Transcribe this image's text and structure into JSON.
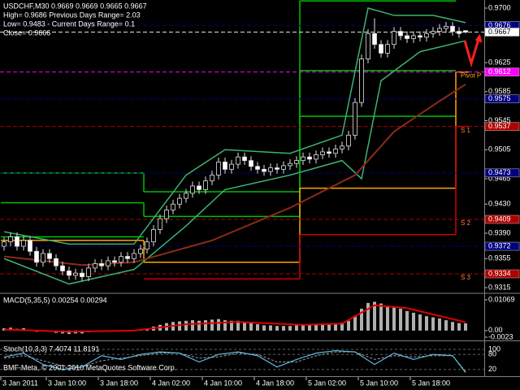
{
  "chart_data": {
    "type": "candlestick",
    "header": [
      "USDCHF,M30  0.9669 0.9669 0.9665 0.9667",
      "High= 0.9686   Previous Days Range= 2.03",
      "Low= 0.9483 - Current Days Range= 0.1",
      "Close= 0.9666"
    ],
    "candles": [
      [
        0.9372,
        0.9384,
        0.9366,
        0.9378
      ],
      [
        0.9378,
        0.9391,
        0.9372,
        0.9385
      ],
      [
        0.9385,
        0.9391,
        0.9366,
        0.9372
      ],
      [
        0.9372,
        0.9386,
        0.9366,
        0.938
      ],
      [
        0.938,
        0.9386,
        0.9359,
        0.9365
      ],
      [
        0.9365,
        0.9371,
        0.9344,
        0.935
      ],
      [
        0.935,
        0.9368,
        0.9344,
        0.9362
      ],
      [
        0.9362,
        0.9368,
        0.9349,
        0.9355
      ],
      [
        0.9355,
        0.9361,
        0.9339,
        0.9345
      ],
      [
        0.9345,
        0.9351,
        0.9332,
        0.9338
      ],
      [
        0.9338,
        0.9344,
        0.9326,
        0.9332
      ],
      [
        0.9332,
        0.9341,
        0.9326,
        0.9335
      ],
      [
        0.9335,
        0.9341,
        0.9324,
        0.933
      ],
      [
        0.933,
        0.9348,
        0.9324,
        0.9342
      ],
      [
        0.9342,
        0.9354,
        0.9336,
        0.9348
      ],
      [
        0.9348,
        0.9354,
        0.9339,
        0.9345
      ],
      [
        0.9345,
        0.9358,
        0.9339,
        0.9352
      ],
      [
        0.9352,
        0.9358,
        0.9344,
        0.935
      ],
      [
        0.935,
        0.9364,
        0.9344,
        0.9358
      ],
      [
        0.9358,
        0.9364,
        0.9349,
        0.9355
      ],
      [
        0.9355,
        0.9368,
        0.9349,
        0.9362
      ],
      [
        0.9362,
        0.9374,
        0.9356,
        0.9368
      ],
      [
        0.9368,
        0.9384,
        0.9362,
        0.9378
      ],
      [
        0.9378,
        0.9401,
        0.9372,
        0.9395
      ],
      [
        0.9395,
        0.9416,
        0.9389,
        0.941
      ],
      [
        0.941,
        0.9428,
        0.9404,
        0.9422
      ],
      [
        0.9422,
        0.9436,
        0.9416,
        0.943
      ],
      [
        0.943,
        0.9444,
        0.9424,
        0.9438
      ],
      [
        0.9438,
        0.9451,
        0.9432,
        0.9445
      ],
      [
        0.9445,
        0.9461,
        0.9439,
        0.9455
      ],
      [
        0.9455,
        0.9461,
        0.9444,
        0.945
      ],
      [
        0.945,
        0.9468,
        0.9444,
        0.9462
      ],
      [
        0.9462,
        0.9476,
        0.9456,
        0.947
      ],
      [
        0.947,
        0.9494,
        0.9464,
        0.9488
      ],
      [
        0.9488,
        0.9494,
        0.9472,
        0.9478
      ],
      [
        0.9478,
        0.9491,
        0.9472,
        0.9485
      ],
      [
        0.9485,
        0.9501,
        0.9479,
        0.9495
      ],
      [
        0.9495,
        0.9501,
        0.9484,
        0.949
      ],
      [
        0.949,
        0.9496,
        0.9476,
        0.9482
      ],
      [
        0.9482,
        0.9488,
        0.9472,
        0.9478
      ],
      [
        0.9478,
        0.9484,
        0.9469,
        0.9475
      ],
      [
        0.9475,
        0.9486,
        0.9469,
        0.948
      ],
      [
        0.948,
        0.9486,
        0.9472,
        0.9478
      ],
      [
        0.9478,
        0.9489,
        0.9472,
        0.9483
      ],
      [
        0.9483,
        0.9492,
        0.9477,
        0.9486
      ],
      [
        0.9486,
        0.9496,
        0.948,
        0.949
      ],
      [
        0.949,
        0.9501,
        0.9484,
        0.9495
      ],
      [
        0.9495,
        0.9501,
        0.9486,
        0.9492
      ],
      [
        0.9492,
        0.9504,
        0.9486,
        0.9498
      ],
      [
        0.9498,
        0.9508,
        0.9492,
        0.9502
      ],
      [
        0.9502,
        0.9508,
        0.9494,
        0.95
      ],
      [
        0.95,
        0.9512,
        0.9494,
        0.9506
      ],
      [
        0.9506,
        0.9516,
        0.95,
        0.951
      ],
      [
        0.951,
        0.9531,
        0.9504,
        0.9525
      ],
      [
        0.9525,
        0.9576,
        0.9519,
        0.957
      ],
      [
        0.957,
        0.9636,
        0.9564,
        0.963
      ],
      [
        0.963,
        0.9671,
        0.9624,
        0.9665
      ],
      [
        0.9665,
        0.9686,
        0.9644,
        0.965
      ],
      [
        0.965,
        0.9656,
        0.9632,
        0.9638
      ],
      [
        0.9638,
        0.9656,
        0.9632,
        0.965
      ],
      [
        0.965,
        0.9674,
        0.9644,
        0.9668
      ],
      [
        0.9668,
        0.9674,
        0.9656,
        0.9662
      ],
      [
        0.9662,
        0.9668,
        0.9652,
        0.9658
      ],
      [
        0.9658,
        0.9668,
        0.9652,
        0.9662
      ],
      [
        0.9662,
        0.9668,
        0.9654,
        0.966
      ],
      [
        0.966,
        0.9671,
        0.9654,
        0.9665
      ],
      [
        0.9665,
        0.9674,
        0.9659,
        0.9668
      ],
      [
        0.9668,
        0.9678,
        0.9662,
        0.9672
      ],
      [
        0.9672,
        0.9681,
        0.9666,
        0.9675
      ],
      [
        0.9675,
        0.9681,
        0.9662,
        0.9668
      ],
      [
        0.9668,
        0.9674,
        0.9659,
        0.9665
      ],
      [
        0.9669,
        0.9669,
        0.9665,
        0.9667
      ]
    ],
    "ylim": [
      0.9315,
      0.97
    ],
    "yticks": [
      {
        "value": 0.97,
        "label": "0.9700"
      },
      0.9625,
      0.9585,
      0.9545,
      0.9505,
      0.9465,
      {
        "value": 0.943,
        "label": "0.9430"
      },
      {
        "value": 0.939,
        "label": "0.9390"
      },
      0.9355,
      0.9315
    ],
    "xticks": [
      {
        "value": 0,
        "label": "3 Jan 2011"
      },
      {
        "value": 7,
        "label": "3 Jan 10:00"
      },
      {
        "value": 15,
        "label": "3 Jan 18:00"
      },
      {
        "value": 23,
        "label": "4 Jan 02:00"
      },
      {
        "value": 31,
        "label": "4 Jan 10:00"
      },
      {
        "value": 39,
        "label": "4 Jan 18:00"
      },
      {
        "value": 47,
        "label": "5 Jan 02:00"
      },
      {
        "value": 55,
        "label": "5 Jan 10:00"
      },
      {
        "value": 63,
        "label": "5 Jan 18:00"
      }
    ],
    "ma": {
      "color": "#8b2a1a",
      "x": [
        0,
        12,
        20,
        32,
        44,
        54,
        60,
        67,
        71
      ],
      "values": [
        0.9358,
        0.9346,
        0.935,
        0.938,
        0.9425,
        0.947,
        0.953,
        0.9572,
        0.9595
      ]
    },
    "bands": [
      {
        "color": "#3cb371",
        "x": [
          0,
          10,
          20,
          28,
          34,
          44,
          52,
          56,
          60,
          66,
          71
        ],
        "values": [
          0.9392,
          0.9375,
          0.9375,
          0.947,
          0.9505,
          0.95,
          0.9525,
          0.97,
          0.969,
          0.969,
          0.968
        ]
      },
      {
        "color": "#3cb371",
        "x": [
          0,
          10,
          20,
          28,
          34,
          44,
          52,
          55,
          58,
          64,
          71
        ],
        "values": [
          0.9355,
          0.932,
          0.934,
          0.94,
          0.945,
          0.947,
          0.949,
          0.9465,
          0.96,
          0.964,
          0.9655
        ]
      }
    ],
    "day_breaks": [
      0,
      22,
      46,
      70,
      72
    ],
    "levels": [
      {
        "color": "#00c000",
        "values": [
          0.9473,
          0.9447,
          0.971,
          null
        ]
      },
      {
        "color": "#00c000",
        "values": [
          0.9432,
          0.9413,
          0.9614,
          null
        ]
      },
      {
        "color": "#00c000",
        "values": [
          0.9385,
          null,
          0.9551,
          null
        ]
      },
      {
        "color": "#ffa500",
        "values": [
          0.938,
          0.935,
          0.9452,
          0.9612
        ]
      },
      {
        "color": "#d00000",
        "values": [
          null,
          0.9327,
          0.9388,
          0.9537
        ]
      }
    ],
    "hlines": [
      {
        "value": 0.9676,
        "color": "#000080"
      },
      {
        "value": 0.9667,
        "color": "#e0e0e0"
      },
      {
        "value": 0.9612,
        "color": "#ff00ff",
        "text": "Pivot P"
      },
      {
        "value": 0.9575,
        "color": "#000080"
      },
      {
        "value": 0.9537,
        "color": "#b00000",
        "text": "S 1"
      },
      {
        "value": 0.9473,
        "color": "#000080"
      },
      {
        "value": 0.9409,
        "color": "#b00000",
        "text": "S 2"
      },
      {
        "value": 0.9372,
        "color": "#000080"
      },
      {
        "value": 0.9334,
        "color": "#b00000",
        "text": "S 3"
      }
    ],
    "macd": {
      "title": "MACD(5,35,5) 0.00254 0.00294",
      "hist_color": "#b0b0b0",
      "hist": [
        0.0008,
        0.001,
        0.0006,
        0.0008,
        0.0002,
        -0.0004,
        -0.0002,
        -0.0004,
        -0.0008,
        -0.001,
        -0.0012,
        -0.001,
        -0.001,
        -0.0006,
        -0.0004,
        -0.0004,
        -0.0002,
        -0.0002,
        0,
        0,
        0.0002,
        0.0004,
        0.0008,
        0.0014,
        0.002,
        0.0026,
        0.003,
        0.0032,
        0.0034,
        0.0036,
        0.0034,
        0.0036,
        0.0038,
        0.004,
        0.0036,
        0.0034,
        0.0034,
        0.003,
        0.0026,
        0.0022,
        0.0018,
        0.0018,
        0.0016,
        0.0016,
        0.0016,
        0.0018,
        0.002,
        0.002,
        0.0022,
        0.0024,
        0.0024,
        0.0026,
        0.0028,
        0.0034,
        0.0052,
        0.0076,
        0.0096,
        0.01,
        0.0094,
        0.0086,
        0.0084,
        0.0076,
        0.0068,
        0.0062,
        0.0056,
        0.005,
        0.0046,
        0.0042,
        0.0036,
        0.003,
        0.0026,
        0.0025
      ],
      "signal": {
        "color": "#e00000",
        "x": [
          0,
          10,
          20,
          28,
          36,
          46,
          52,
          57,
          62,
          71
        ],
        "values": [
          0.0004,
          -0.0004,
          0,
          0.0022,
          0.003,
          0.002,
          0.0024,
          0.0088,
          0.0078,
          0.0029
        ]
      },
      "ylim": [
        -0.0023,
        0.01069
      ],
      "yticks": [
        0.01069,
        {
          "value": 0,
          "label": "0.00"
        },
        -0.0023
      ]
    },
    "stoch": {
      "title": "Stoch(10,3,3) 7.4074 11.8191",
      "ylim": [
        0,
        100
      ],
      "yticks": [
        100,
        80,
        20
      ],
      "k": {
        "color": "#5fb8e0",
        "x": [
          0,
          3,
          6,
          9,
          12,
          15,
          18,
          21,
          24,
          27,
          30,
          33,
          36,
          39,
          42,
          45,
          48,
          51,
          54,
          57,
          60,
          63,
          66,
          69,
          71
        ],
        "values": [
          70,
          85,
          40,
          20,
          30,
          75,
          60,
          80,
          90,
          85,
          50,
          80,
          90,
          75,
          30,
          60,
          85,
          95,
          90,
          40,
          85,
          60,
          80,
          75,
          8
        ]
      },
      "d": {
        "color": "#a0a0a0",
        "x": [
          0,
          3,
          6,
          9,
          12,
          15,
          18,
          21,
          24,
          27,
          30,
          33,
          36,
          39,
          42,
          45,
          48,
          51,
          54,
          57,
          60,
          63,
          66,
          69,
          71
        ],
        "values": [
          65,
          75,
          55,
          35,
          30,
          55,
          65,
          75,
          85,
          85,
          65,
          70,
          85,
          80,
          50,
          50,
          75,
          90,
          90,
          60,
          75,
          70,
          75,
          75,
          12
        ]
      }
    },
    "footer": "BMF-Meta, © 2001-2010 MetaQuotes Software Corp."
  }
}
